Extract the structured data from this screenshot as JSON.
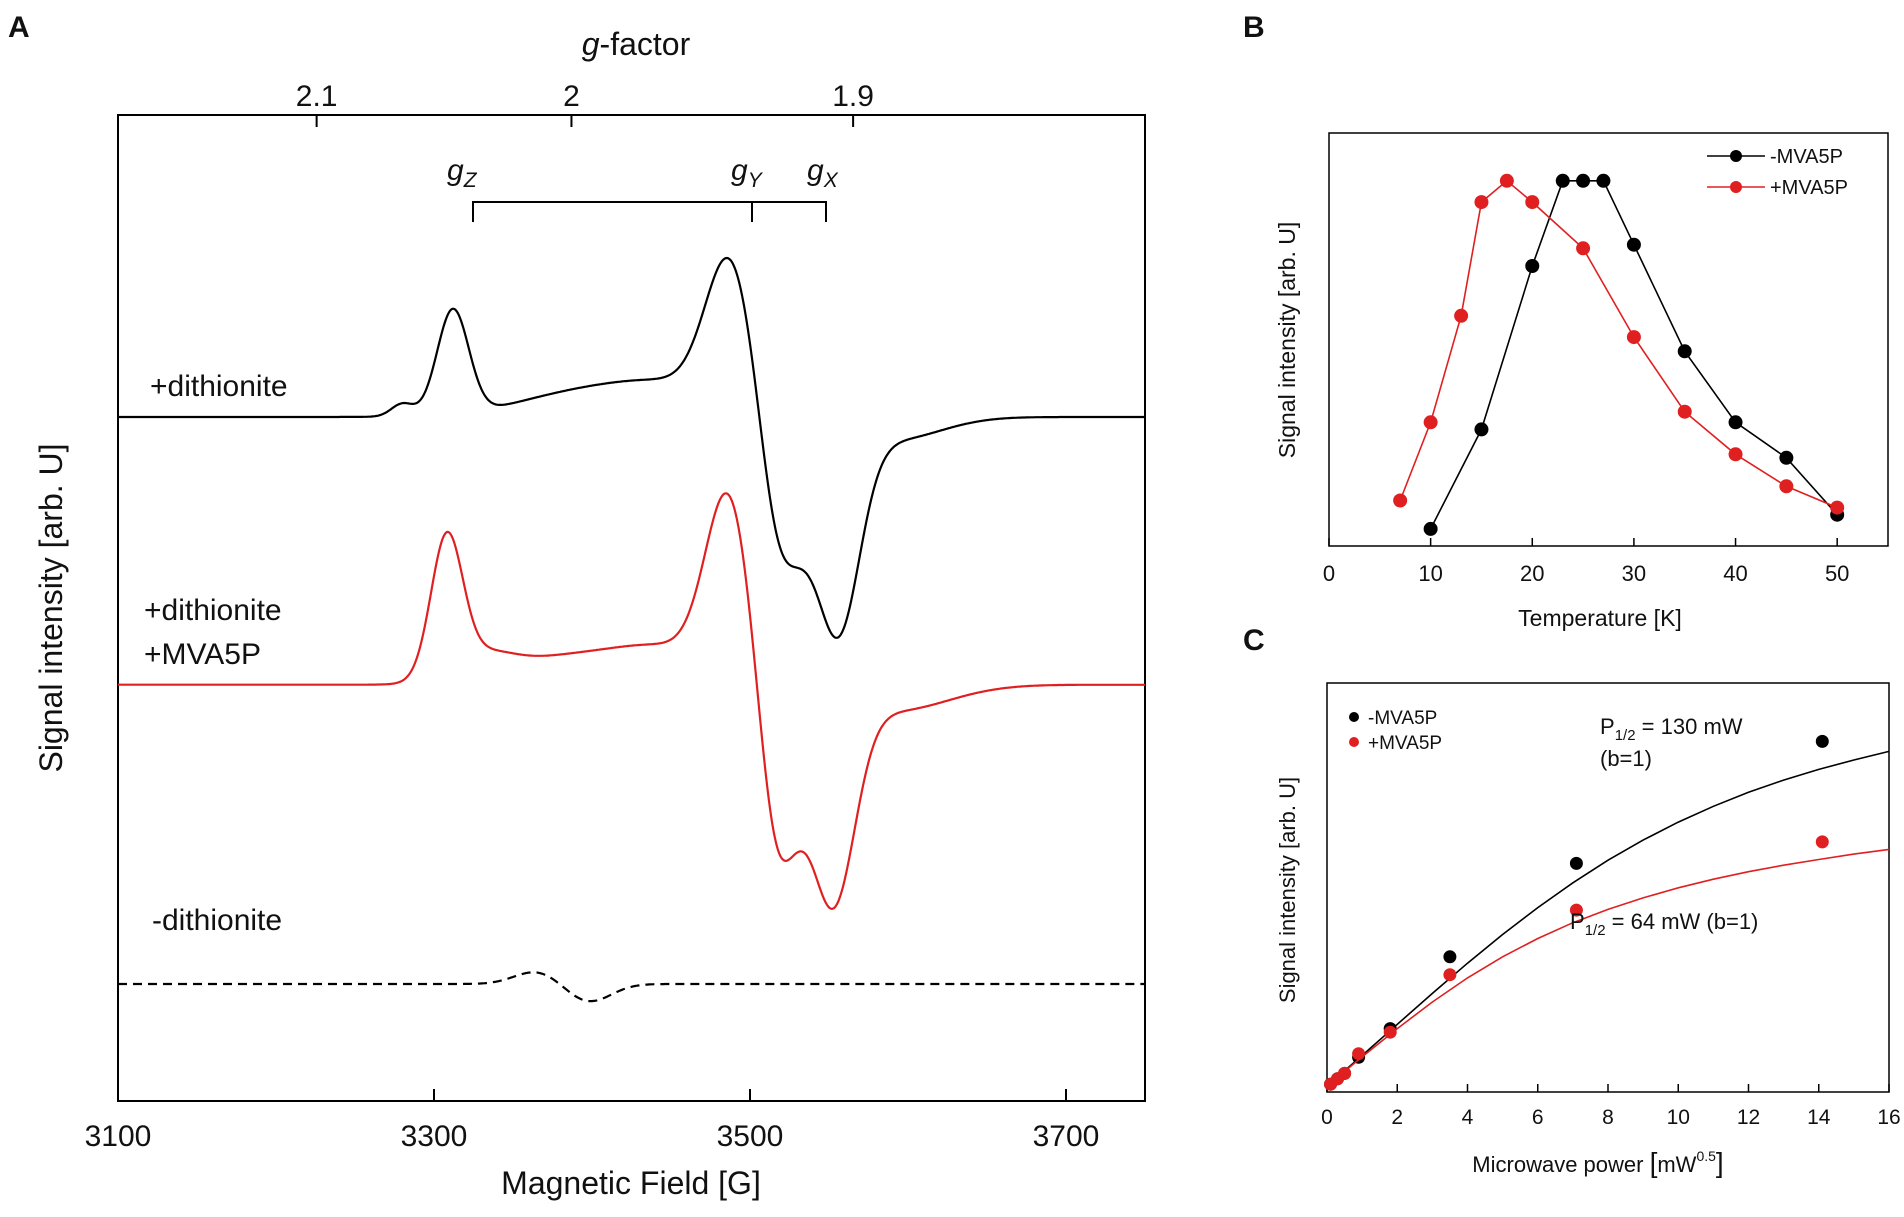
{
  "chart_data": [
    {
      "id": "A",
      "type": "line",
      "panel_label": "A",
      "title": "",
      "xlabel": "Magnetic Field [G]",
      "ylabel": "Signal intensity [arb. U]",
      "top_axis_label_italic": "g",
      "top_axis_label_rest": "-factor",
      "xlim": [
        3100,
        3750
      ],
      "x_ticks": [
        3100,
        3300,
        3500,
        3700
      ],
      "top_ticks": [
        2.1,
        2.0,
        1.9
      ],
      "top_tick_labels": [
        "2.1",
        "2",
        "1.9"
      ],
      "g_markers": [
        {
          "label": "g",
          "sub": "Z",
          "field": 3322
        },
        {
          "label": "g",
          "sub": "Y",
          "field": 3500
        },
        {
          "label": "g",
          "sub": "X",
          "field": 3546
        }
      ],
      "series": [
        {
          "name": "+dithionite",
          "color": "#000000",
          "dashed": false,
          "offset": 0.0,
          "peaks": [
            {
              "center": 3312,
              "amp": 1.0,
              "width": 10
            },
            {
              "center": 3280,
              "amp": 0.12,
              "width": 7
            },
            {
              "center": 3370,
              "amp": 0.05,
              "width": 30
            },
            {
              "center": 3440,
              "amp": 0.35,
              "width": 55
            },
            {
              "center": 3487,
              "amp": 1.3,
              "width": 15
            },
            {
              "center": 3519,
              "amp": -1.35,
              "width": 12
            },
            {
              "center": 3534,
              "amp": -0.25,
              "width": 9
            },
            {
              "center": 3555,
              "amp": -2.0,
              "width": 14
            },
            {
              "center": 3590,
              "amp": -0.22,
              "width": 30
            }
          ]
        },
        {
          "name": "+dithionite +MVA5P",
          "color": "#e02020",
          "dashed": false,
          "offset": -2.55,
          "peaks": [
            {
              "center": 3308,
              "amp": 1.3,
              "width": 10
            },
            {
              "center": 3330,
              "amp": 0.25,
              "width": 20
            },
            {
              "center": 3370,
              "amp": 0.1,
              "width": 25
            },
            {
              "center": 3440,
              "amp": 0.38,
              "width": 50
            },
            {
              "center": 3486,
              "amp": 1.6,
              "width": 14
            },
            {
              "center": 3517,
              "amp": -1.6,
              "width": 11
            },
            {
              "center": 3531,
              "amp": -0.25,
              "width": 9
            },
            {
              "center": 3552,
              "amp": -2.0,
              "width": 14
            },
            {
              "center": 3590,
              "amp": -0.25,
              "width": 35
            }
          ]
        },
        {
          "name": "-dithionite",
          "color": "#000000",
          "dashed": true,
          "offset": -5.4,
          "peaks": [
            {
              "center": 3365,
              "amp": 0.12,
              "width": 14
            },
            {
              "center": 3398,
              "amp": -0.17,
              "width": 14
            }
          ]
        }
      ],
      "annotations": [
        "+dithionite",
        "+dithionite",
        "+MVA5P",
        "-dithionite"
      ]
    },
    {
      "id": "B",
      "type": "line",
      "panel_label": "B",
      "title": "",
      "xlabel": "Temperature [K]",
      "ylabel": "Signal intensity [arb. U]",
      "xlim": [
        0,
        55
      ],
      "ylim": [
        0,
        1.05
      ],
      "x_ticks": [
        0,
        10,
        20,
        30,
        40,
        50
      ],
      "legend_position": "top-right",
      "series": [
        {
          "name": "-MVA5P",
          "color": "#000000",
          "x": [
            10,
            15,
            20,
            23,
            25,
            27,
            30,
            35,
            40,
            45,
            50
          ],
          "y": [
            0.02,
            0.3,
            0.76,
            1.0,
            1.0,
            1.0,
            0.82,
            0.52,
            0.32,
            0.22,
            0.06
          ]
        },
        {
          "name": "+MVA5P",
          "color": "#e02020",
          "x": [
            7,
            10,
            13,
            15,
            17.5,
            20,
            25,
            30,
            35,
            40,
            45,
            50
          ],
          "y": [
            0.1,
            0.32,
            0.62,
            0.94,
            1.0,
            0.94,
            0.81,
            0.56,
            0.35,
            0.23,
            0.14,
            0.08
          ]
        }
      ]
    },
    {
      "id": "C",
      "type": "scatter",
      "panel_label": "C",
      "title": "",
      "xlabel_main": "Microwave power ",
      "xlabel_open": "[",
      "xlabel_unit": "mW",
      "xlabel_sup": "0.5",
      "xlabel_close": "]",
      "ylabel": "Signal intensity [arb. U]",
      "xlim": [
        0,
        16
      ],
      "ylim": [
        0,
        1.0
      ],
      "x_ticks": [
        0,
        2,
        4,
        6,
        8,
        10,
        12,
        14,
        16
      ],
      "legend_position": "top-left",
      "series": [
        {
          "name": "-MVA5P",
          "color": "#000000",
          "p_half": 130,
          "x": [
            0.1,
            0.3,
            0.5,
            0.9,
            1.8,
            3.5,
            7.1,
            14.1
          ],
          "y": [
            0.005,
            0.02,
            0.035,
            0.08,
            0.16,
            0.36,
            0.62,
            0.96
          ],
          "fit_x": [
            0,
            1,
            2,
            3,
            4,
            5,
            6,
            7,
            8,
            9,
            10,
            11,
            12,
            13,
            14,
            15,
            16
          ],
          "fit_y": [
            0,
            0.085,
            0.172,
            0.258,
            0.342,
            0.422,
            0.497,
            0.566,
            0.629,
            0.685,
            0.735,
            0.779,
            0.818,
            0.852,
            0.882,
            0.908,
            0.932
          ]
        },
        {
          "name": "+MVA5P",
          "color": "#e02020",
          "p_half": 64,
          "x": [
            0.1,
            0.3,
            0.5,
            0.9,
            1.8,
            3.5,
            7.1,
            14.1
          ],
          "y": [
            0.005,
            0.02,
            0.035,
            0.09,
            0.15,
            0.31,
            0.49,
            0.68
          ],
          "fit_x": [
            0,
            1,
            2,
            3,
            4,
            5,
            6,
            7,
            8,
            9,
            10,
            11,
            12,
            13,
            14,
            15,
            16
          ],
          "fit_y": [
            0,
            0.081,
            0.16,
            0.234,
            0.301,
            0.36,
            0.411,
            0.455,
            0.492,
            0.524,
            0.552,
            0.576,
            0.597,
            0.615,
            0.631,
            0.646,
            0.659
          ]
        }
      ],
      "annotations": [
        {
          "main": "P",
          "sub": "1/2",
          "rest": " = 130 mW",
          "line2": "(b=1)"
        },
        {
          "main": "P",
          "sub": "1/2",
          "rest": " = 64 mW (b=1)"
        }
      ]
    }
  ]
}
